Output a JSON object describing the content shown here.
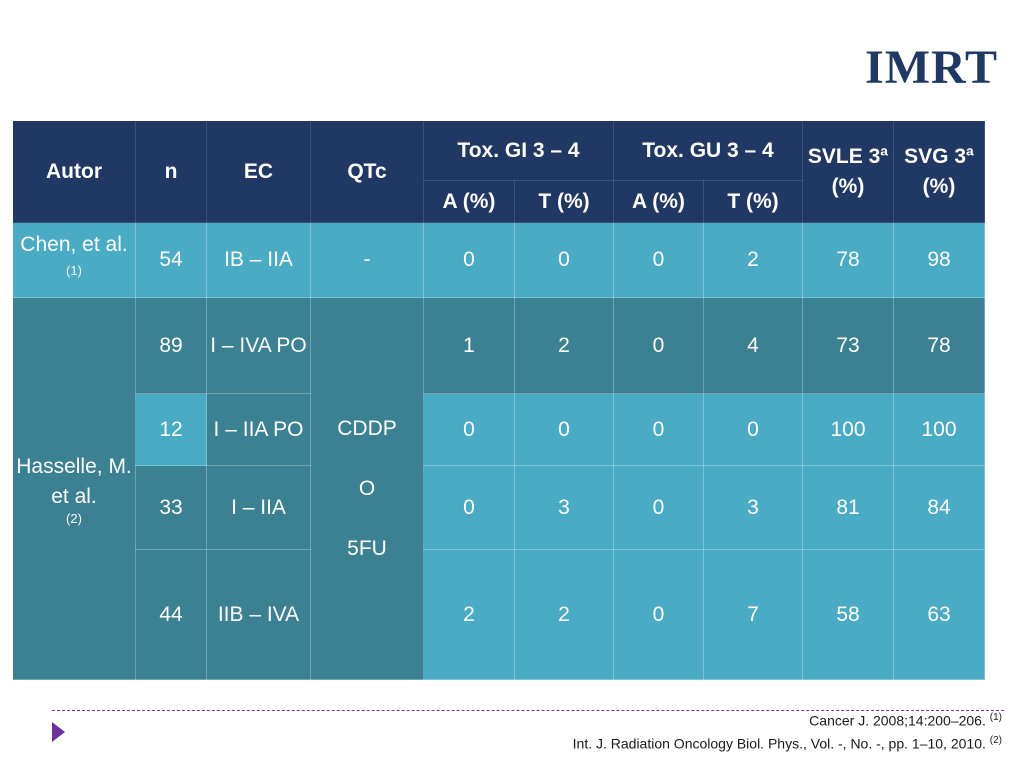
{
  "title": "IMRT",
  "table": {
    "headers": {
      "autor": "Autor",
      "n": "n",
      "ec": "EC",
      "qtc": "QTc",
      "tox_gi": "Tox. GI 3 – 4",
      "tox_gu": "Tox. GU 3 – 4",
      "svle": "SVLE 3ª (%)",
      "svg": "SVG 3ª (%)",
      "a_pct": "A (%)",
      "t_pct": "T (%)"
    },
    "chen": {
      "author": "Chen, et al.",
      "ref": "(1)",
      "n": "54",
      "ec": "IB – IIA",
      "qtc": "-",
      "gi_a": "0",
      "gi_t": "0",
      "gu_a": "0",
      "gu_t": "2",
      "svle": "78",
      "svg": "98"
    },
    "hasselle": {
      "author": "Hasselle, M. et al.",
      "ref": "(2)",
      "qtc_line1": "CDDP",
      "qtc_line2": "O",
      "qtc_line3": "5FU",
      "rows": [
        {
          "n": "89",
          "ec": "I – IVA PO",
          "gi_a": "1",
          "gi_t": "2",
          "gu_a": "0",
          "gu_t": "4",
          "svle": "73",
          "svg": "78"
        },
        {
          "n": "12",
          "ec": "I – IIA PO",
          "gi_a": "0",
          "gi_t": "0",
          "gu_a": "0",
          "gu_t": "0",
          "svle": "100",
          "svg": "100"
        },
        {
          "n": "33",
          "ec": "I – IIA",
          "gi_a": "0",
          "gi_t": "3",
          "gu_a": "0",
          "gu_t": "3",
          "svle": "81",
          "svg": "84"
        },
        {
          "n": "44",
          "ec": "IIB – IVA",
          "gi_a": "2",
          "gi_t": "2",
          "gu_a": "0",
          "gu_t": "7",
          "svle": "58",
          "svg": "63"
        }
      ]
    }
  },
  "references": {
    "ref1": "Cancer J. 2008;14:200–206.",
    "ref1_mark": "(1)",
    "ref2": "Int. J. Radiation Oncology Biol. Phys., Vol. -, No. -, pp. 1–10, 2010.",
    "ref2_mark": "(2)"
  },
  "colors": {
    "header_navy": "#1f3864",
    "cell_teal_light": "#4aabc4",
    "cell_teal_dark": "#3b8093",
    "accent_purple": "#7030a0"
  }
}
